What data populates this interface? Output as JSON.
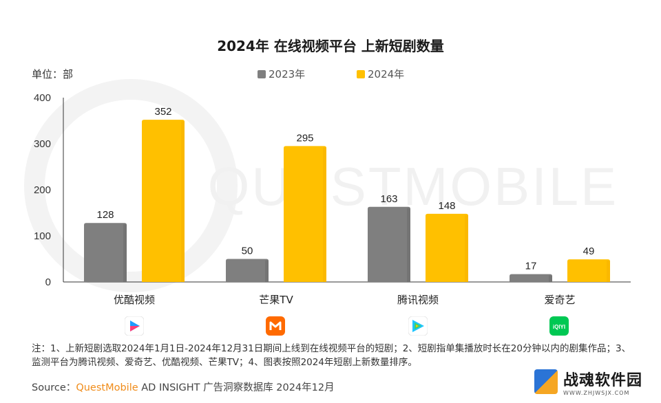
{
  "chart_data": {
    "type": "bar",
    "title": "2024年 在线视频平台 上新短剧数量",
    "unit_label": "单位：部",
    "categories": [
      "优酷视频",
      "芒果TV",
      "腾讯视频",
      "爱奇艺"
    ],
    "series": [
      {
        "name": "2023年",
        "values": [
          128,
          50,
          163,
          17
        ],
        "color": "#7f7f7f"
      },
      {
        "name": "2024年",
        "values": [
          352,
          295,
          148,
          49
        ],
        "color": "#ffc000"
      }
    ],
    "ylim": [
      0,
      400
    ],
    "yticks": [
      0,
      100,
      200,
      300,
      400
    ],
    "grid": false,
    "legend": "top",
    "watermark": "QUESTMOBILE"
  },
  "platform_icons": [
    "youku-icon",
    "mango-tv-icon",
    "tencent-video-icon",
    "iqiyi-icon"
  ],
  "iqiyi_logo_text": "iQIYI",
  "note": "注：1、上新短剧选取2024年1月1日-2024年12月31日期间上线到在线视频平台的短剧；2、短剧指单集播放时长在20分钟以内的剧集作品；3、监测平台为腾讯视频、爱奇艺、优酷视频、芒果TV；4、图表按照2024年短剧上新数量排序。",
  "source": {
    "prefix": "Source：",
    "brand": "QuestMobile",
    "rest": " AD INSIGHT 广告洞察数据库 2024年12月"
  },
  "corner_watermark": {
    "name": "战魂软件园",
    "url": "WWW.ZHJWSJX.COM"
  }
}
